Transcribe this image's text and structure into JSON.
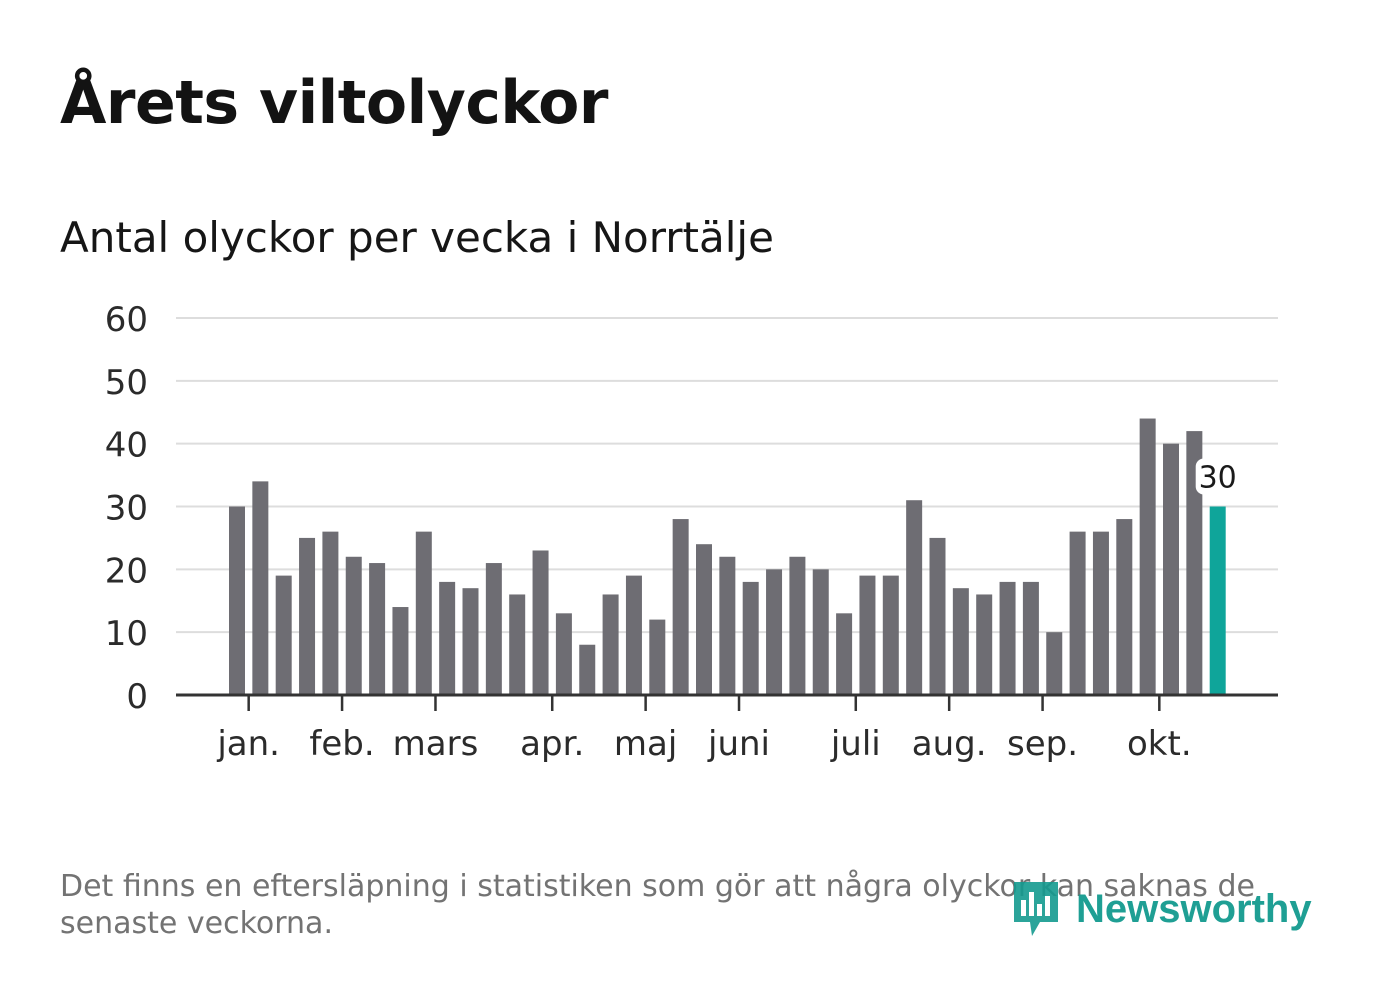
{
  "title": "Årets viltolyckor",
  "subtitle": "Antal olyckor per vecka i Norrtälje",
  "footnote": "Det finns en eftersläpning i statistiken som gör att några olyckor kan saknas de senaste veckorna.",
  "brand": {
    "name": "Newsworthy",
    "color": "#149a8f",
    "icon": "newsworthy-logo-icon"
  },
  "colors": {
    "bar": "#6e6d73",
    "highlight": "#0fa59a",
    "grid": "#dddddd",
    "axis": "#333333",
    "text": "#2b2b2b"
  },
  "chart_data": {
    "type": "bar",
    "title": "Antal olyckor per vecka i Norrtälje",
    "xlabel": "",
    "ylabel": "",
    "ylim": [
      0,
      60
    ],
    "yticks": [
      "0",
      "10",
      "20",
      "30",
      "40",
      "50",
      "60"
    ],
    "month_labels": [
      {
        "label": "jan.",
        "week_index": 0.5
      },
      {
        "label": "feb.",
        "week_index": 4.5
      },
      {
        "label": "mars",
        "week_index": 8.5
      },
      {
        "label": "apr.",
        "week_index": 13.5
      },
      {
        "label": "maj",
        "week_index": 17.5
      },
      {
        "label": "juni",
        "week_index": 21.5
      },
      {
        "label": "juli",
        "week_index": 26.5
      },
      {
        "label": "aug.",
        "week_index": 30.5
      },
      {
        "label": "sep.",
        "week_index": 34.5
      },
      {
        "label": "okt.",
        "week_index": 39.5
      }
    ],
    "values": [
      30,
      34,
      19,
      25,
      26,
      22,
      21,
      14,
      26,
      18,
      17,
      21,
      16,
      23,
      13,
      8,
      16,
      19,
      12,
      28,
      24,
      22,
      18,
      20,
      22,
      20,
      13,
      19,
      19,
      31,
      25,
      17,
      16,
      18,
      18,
      10,
      26,
      26,
      28,
      44,
      40,
      42,
      30
    ],
    "highlight_index": 42,
    "highlight_label": "30",
    "grid": true,
    "legend": "none"
  }
}
